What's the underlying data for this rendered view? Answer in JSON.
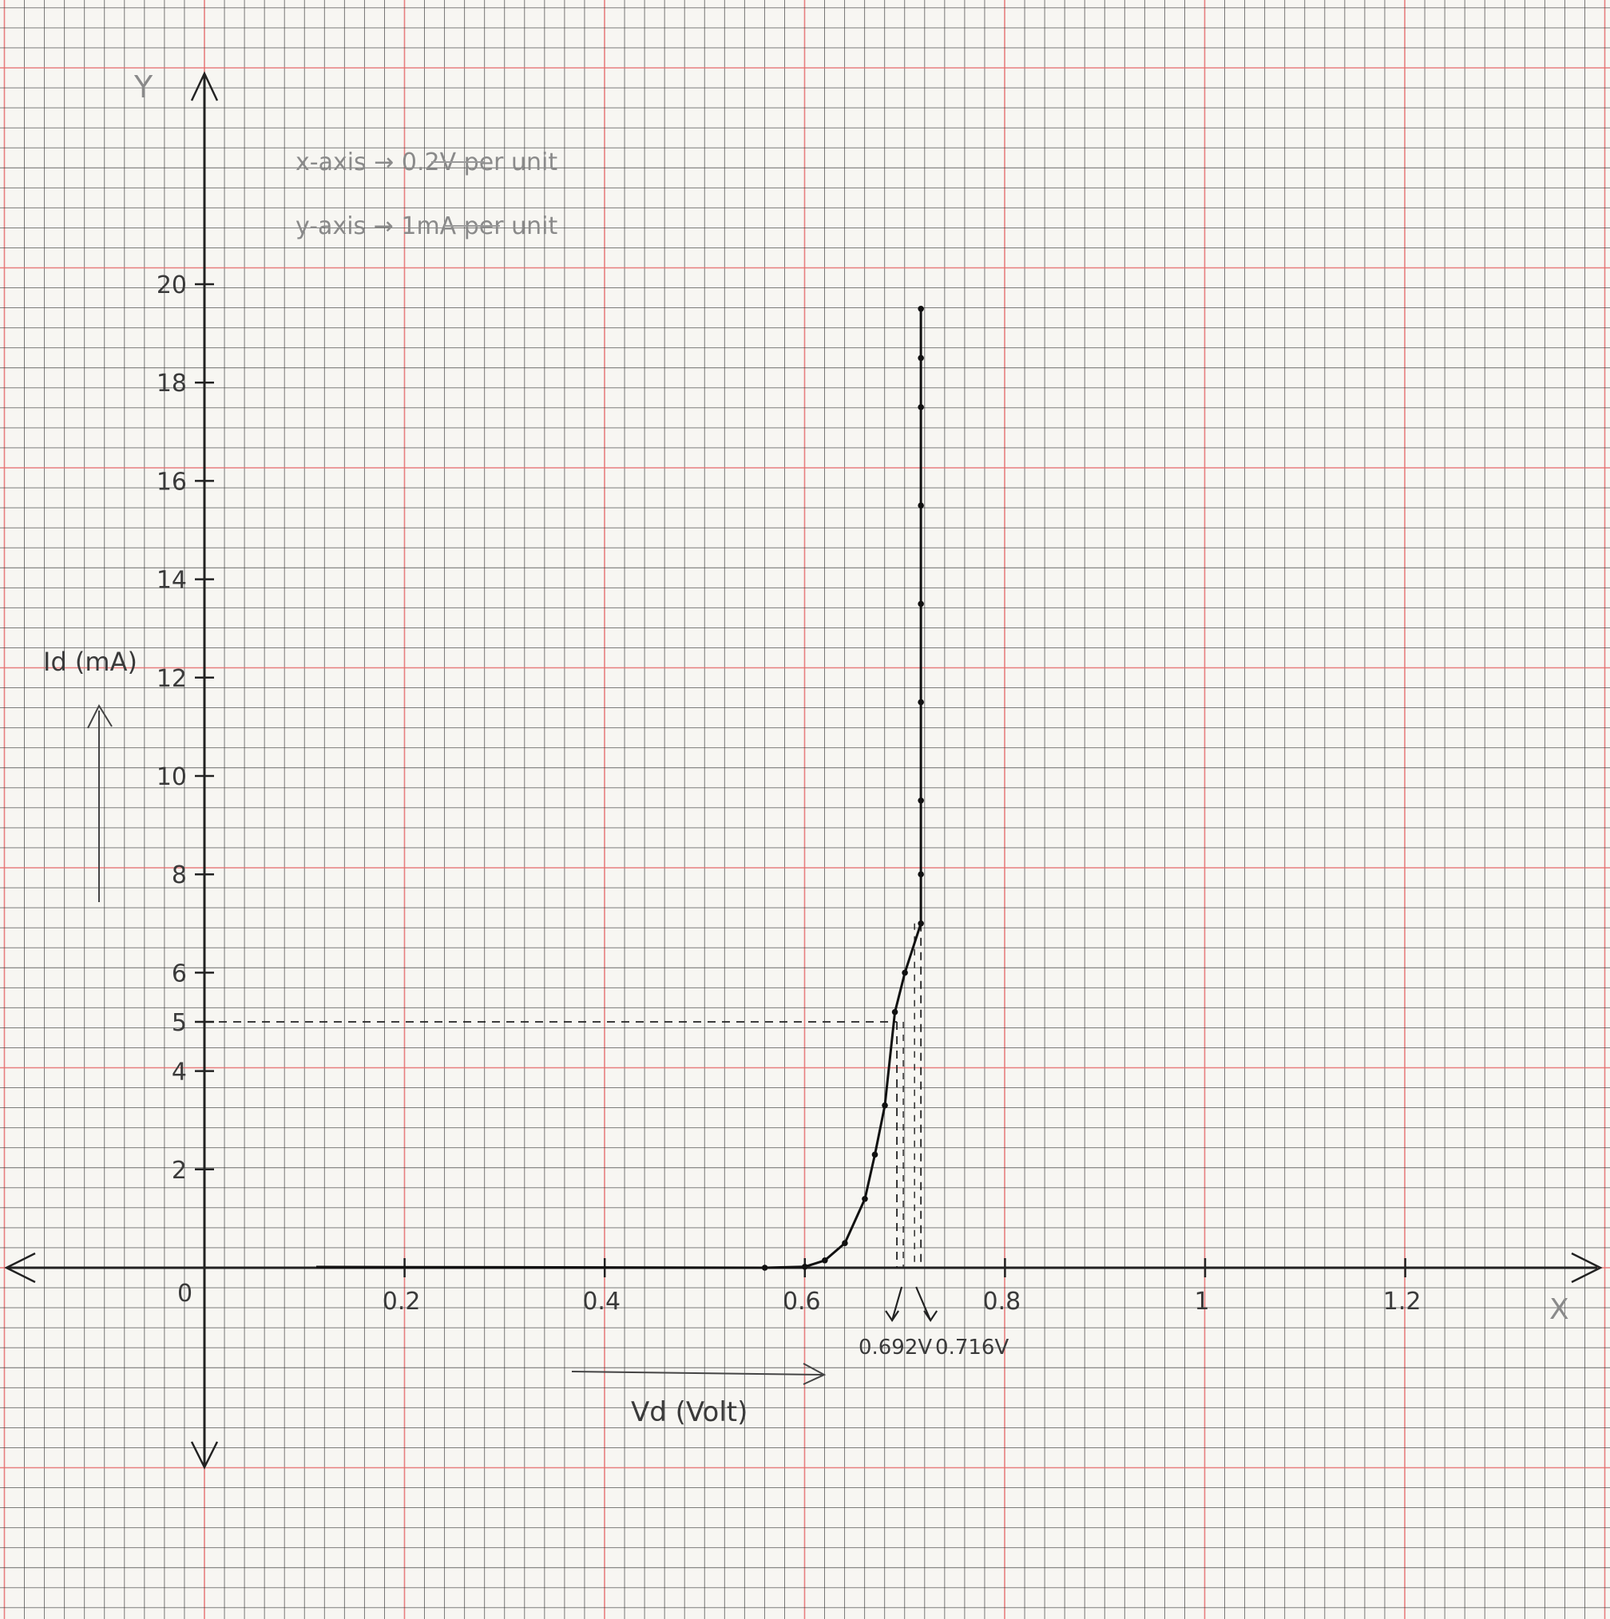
{
  "chart_data": {
    "type": "line",
    "scale_notes": [
      "x-axis → 0.2V per unit",
      "y-axis → 1mA per unit"
    ],
    "xlabel": "Vd (Volt)",
    "ylabel": "Id (mA)",
    "x_axis_letter": "X",
    "y_axis_letter": "Y",
    "origin_label": "0",
    "x_ticks": [
      {
        "value": 0.2,
        "label": "0.2"
      },
      {
        "value": 0.4,
        "label": "0.4"
      },
      {
        "value": 0.6,
        "label": "0.6"
      },
      {
        "value": 0.8,
        "label": "0.8"
      },
      {
        "value": 1.0,
        "label": "1"
      },
      {
        "value": 1.2,
        "label": "1.2"
      }
    ],
    "y_ticks": [
      {
        "value": 2,
        "label": "2"
      },
      {
        "value": 4,
        "label": "4"
      },
      {
        "value": 5,
        "label": "5"
      },
      {
        "value": 6,
        "label": "6"
      },
      {
        "value": 8,
        "label": "8"
      },
      {
        "value": 10,
        "label": "10"
      },
      {
        "value": 12,
        "label": "12"
      },
      {
        "value": 14,
        "label": "14"
      },
      {
        "value": 16,
        "label": "16"
      },
      {
        "value": 18,
        "label": "18"
      },
      {
        "value": 20,
        "label": "20"
      }
    ],
    "xlim": [
      -0.2,
      1.4
    ],
    "ylim": [
      -4,
      25
    ],
    "grid": true,
    "series": [
      {
        "x": [
          0.56,
          0.6,
          0.62,
          0.64,
          0.66,
          0.67,
          0.68,
          0.69,
          0.7,
          0.716,
          0.716,
          0.716,
          0.716,
          0.716,
          0.716,
          0.716,
          0.716,
          0.716
        ],
        "y": [
          0,
          0.02,
          0.15,
          0.5,
          1.4,
          2.3,
          3.3,
          5.2,
          6.0,
          7.0,
          8.0,
          9.5,
          11.5,
          13.5,
          15.5,
          17.5,
          18.5,
          19.5
        ]
      }
    ],
    "annotations": [
      {
        "text": "0.692V",
        "x": 0.692,
        "y": 5
      },
      {
        "text": "0.716V",
        "x": 0.716,
        "y": 7
      }
    ]
  }
}
